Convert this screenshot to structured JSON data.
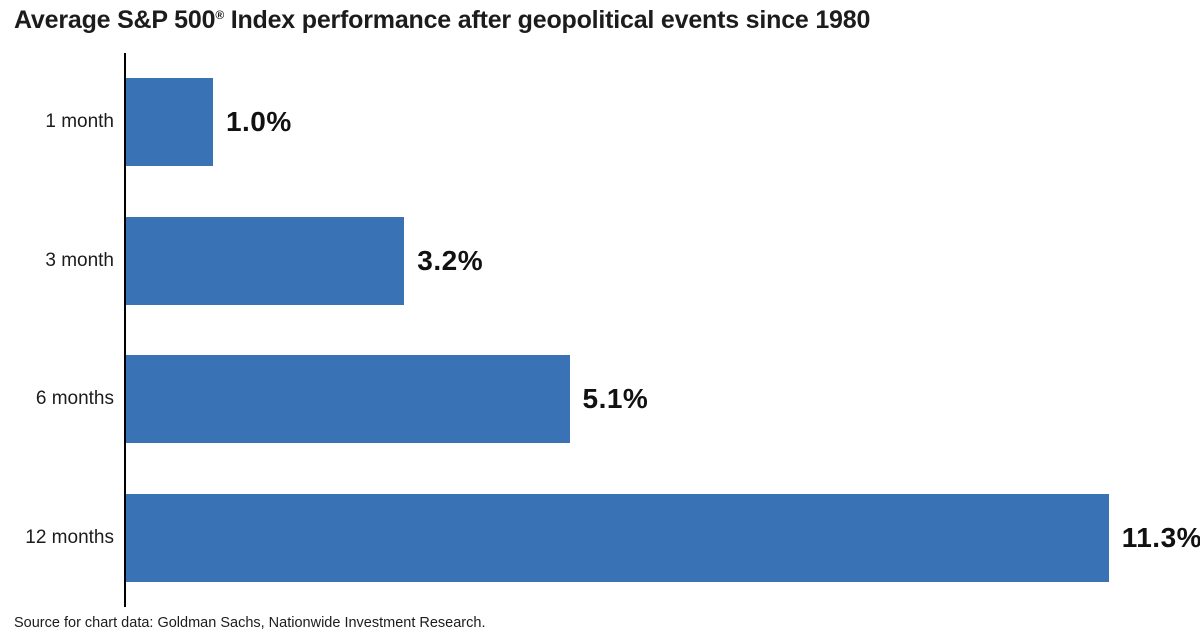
{
  "title_parts": {
    "prefix": "Average S&P 500",
    "registered_mark": "®",
    "suffix": " Index performance after geopolitical events since 1980"
  },
  "chart_data": {
    "type": "bar",
    "orientation": "horizontal",
    "title": "Average S&P 500® Index performance after geopolitical events since 1980",
    "categories": [
      "1 month",
      "3 month",
      "6 months",
      "12 months"
    ],
    "values": [
      1.0,
      3.2,
      5.1,
      11.3
    ],
    "value_labels": [
      "1.0%",
      "3.2%",
      "5.1%",
      "11.3%"
    ],
    "xlim": [
      0,
      12.35
    ],
    "bar_color": "#3A73B5",
    "axis_color": "#000000",
    "grid": false,
    "legend": false,
    "source": "Source for chart data: Goldman Sachs, Nationwide Investment Research."
  }
}
